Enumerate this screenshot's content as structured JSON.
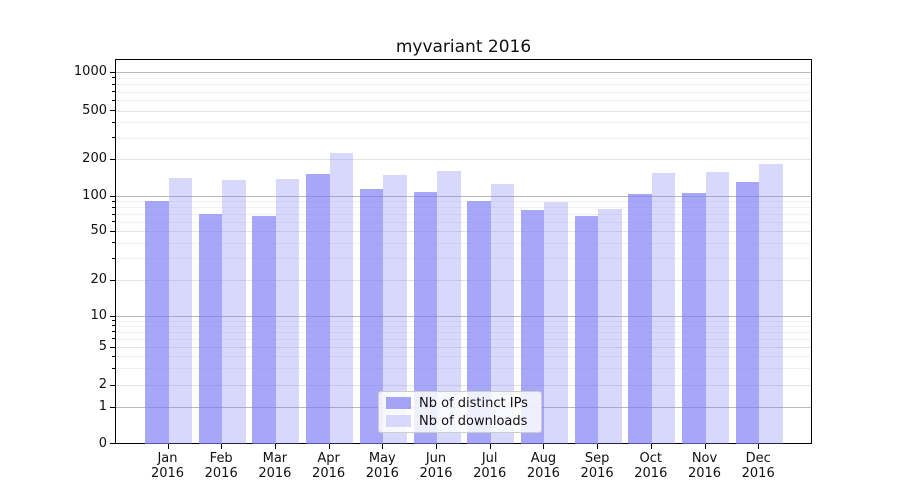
{
  "figure": {
    "title": "myvariant 2016"
  },
  "chart_data": {
    "type": "bar",
    "title": "myvariant 2016",
    "categories": [
      "Jan",
      "Feb",
      "Mar",
      "Apr",
      "May",
      "Jun",
      "Jul",
      "Aug",
      "Sep",
      "Oct",
      "Nov",
      "Dec"
    ],
    "category_year": "2016",
    "series": [
      {
        "name": "Nb of distinct IPs",
        "color": "#a4a4f7",
        "values": [
          93,
          71,
          68,
          153,
          117,
          110,
          92,
          77,
          68,
          105,
          107,
          133
        ]
      },
      {
        "name": "Nb of downloads",
        "color": "#d8d8fc",
        "values": [
          143,
          138,
          140,
          228,
          150,
          163,
          128,
          91,
          79,
          157,
          160,
          187
        ]
      }
    ],
    "yscale": "symlog",
    "y_ticks": [
      0,
      1,
      2,
      5,
      10,
      20,
      50,
      100,
      200,
      500,
      1000
    ],
    "ylim": [
      0,
      1400
    ],
    "grid": true,
    "legend_position": "lower center",
    "bar_colors_rgba": {
      "distinct_ips": "rgba(125,125,247,0.68)",
      "downloads": "rgba(125,125,247,0.30)"
    }
  }
}
